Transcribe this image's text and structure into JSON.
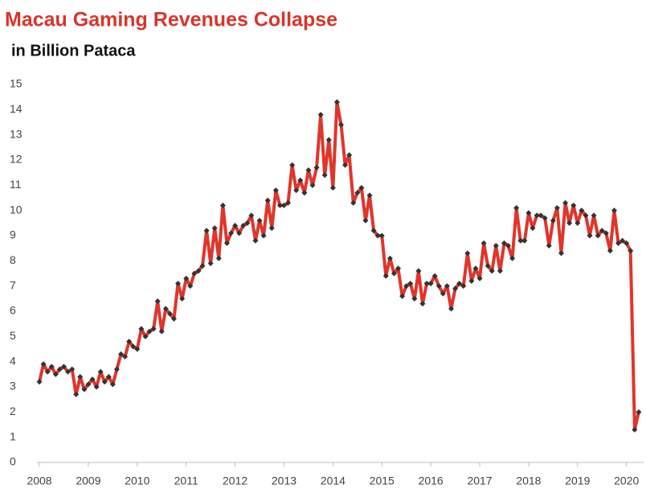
{
  "chart_data": {
    "type": "line",
    "title": "Macau Gaming Revenues Collapse",
    "subtitle": "in Billion Pataca",
    "color": "#e0352b",
    "marker_color": "#333333",
    "x": [
      2008,
      2008.083,
      2008.167,
      2008.25,
      2008.333,
      2008.417,
      2008.5,
      2008.583,
      2008.667,
      2008.75,
      2008.833,
      2008.917,
      2009,
      2009.083,
      2009.167,
      2009.25,
      2009.333,
      2009.417,
      2009.5,
      2009.583,
      2009.667,
      2009.75,
      2009.833,
      2009.917,
      2010,
      2010.083,
      2010.167,
      2010.25,
      2010.333,
      2010.417,
      2010.5,
      2010.583,
      2010.667,
      2010.75,
      2010.833,
      2010.917,
      2011,
      2011.083,
      2011.167,
      2011.25,
      2011.333,
      2011.417,
      2011.5,
      2011.583,
      2011.667,
      2011.75,
      2011.833,
      2011.917,
      2012,
      2012.083,
      2012.167,
      2012.25,
      2012.333,
      2012.417,
      2012.5,
      2012.583,
      2012.667,
      2012.75,
      2012.833,
      2012.917,
      2013,
      2013.083,
      2013.167,
      2013.25,
      2013.333,
      2013.417,
      2013.5,
      2013.583,
      2013.667,
      2013.75,
      2013.833,
      2013.917,
      2014,
      2014.083,
      2014.167,
      2014.25,
      2014.333,
      2014.417,
      2014.5,
      2014.583,
      2014.667,
      2014.75,
      2014.833,
      2014.917,
      2015,
      2015.083,
      2015.167,
      2015.25,
      2015.333,
      2015.417,
      2015.5,
      2015.583,
      2015.667,
      2015.75,
      2015.833,
      2015.917,
      2016,
      2016.083,
      2016.167,
      2016.25,
      2016.333,
      2016.417,
      2016.5,
      2016.583,
      2016.667,
      2016.75,
      2016.833,
      2016.917,
      2017,
      2017.083,
      2017.167,
      2017.25,
      2017.333,
      2017.417,
      2017.5,
      2017.583,
      2017.667,
      2017.75,
      2017.833,
      2017.917,
      2018,
      2018.083,
      2018.167,
      2018.25,
      2018.333,
      2018.417,
      2018.5,
      2018.583,
      2018.667,
      2018.75,
      2018.833,
      2018.917,
      2019,
      2019.083,
      2019.167,
      2019.25,
      2019.333,
      2019.417,
      2019.5,
      2019.583,
      2019.667,
      2019.75,
      2019.833,
      2019.917,
      2020,
      2020.083,
      2020.167,
      2020.25
    ],
    "values": [
      3.2,
      3.9,
      3.6,
      3.8,
      3.5,
      3.7,
      3.8,
      3.6,
      3.7,
      2.7,
      3.4,
      2.9,
      3.1,
      3.3,
      3.0,
      3.6,
      3.2,
      3.4,
      3.1,
      3.7,
      4.3,
      4.2,
      4.8,
      4.6,
      4.5,
      5.3,
      5.0,
      5.2,
      5.3,
      6.4,
      5.2,
      6.1,
      5.9,
      5.7,
      7.1,
      6.5,
      7.3,
      7.0,
      7.5,
      7.6,
      7.8,
      9.2,
      7.9,
      9.3,
      8.1,
      10.2,
      8.7,
      9.1,
      9.4,
      9.1,
      9.4,
      9.5,
      9.8,
      8.8,
      9.6,
      9.0,
      10.4,
      9.3,
      10.8,
      10.2,
      10.2,
      10.3,
      11.8,
      10.8,
      11.2,
      10.7,
      11.6,
      11.0,
      11.7,
      13.8,
      11.4,
      12.8,
      10.9,
      14.3,
      13.4,
      11.8,
      12.2,
      10.3,
      10.7,
      10.9,
      9.6,
      10.6,
      9.2,
      9.0,
      9.0,
      7.4,
      8.1,
      7.5,
      7.7,
      6.6,
      7.0,
      7.1,
      6.5,
      7.6,
      6.3,
      7.1,
      7.1,
      7.4,
      7.0,
      6.7,
      7.0,
      6.1,
      6.9,
      7.1,
      7.0,
      8.3,
      7.2,
      7.7,
      7.3,
      8.7,
      7.8,
      7.6,
      8.6,
      7.6,
      8.7,
      8.6,
      8.1,
      10.1,
      8.8,
      8.8,
      9.9,
      9.3,
      9.8,
      9.8,
      9.7,
      8.6,
      9.6,
      10.1,
      8.3,
      10.3,
      9.5,
      10.2,
      9.5,
      10.0,
      9.8,
      9.0,
      9.8,
      9.0,
      9.2,
      9.1,
      8.4,
      10.0,
      8.7,
      8.8,
      8.7,
      8.4,
      1.3,
      2.0
    ],
    "xlim": [
      2007.95,
      2020.35
    ],
    "xticks": [
      2008,
      2009,
      2010,
      2011,
      2012,
      2013,
      2014,
      2015,
      2016,
      2017,
      2018,
      2019,
      2020
    ],
    "ylim": [
      0,
      15
    ],
    "yticks": [
      0,
      1,
      2,
      3,
      4,
      5,
      6,
      7,
      8,
      9,
      10,
      11,
      12,
      13,
      14,
      15
    ],
    "grid": false
  }
}
